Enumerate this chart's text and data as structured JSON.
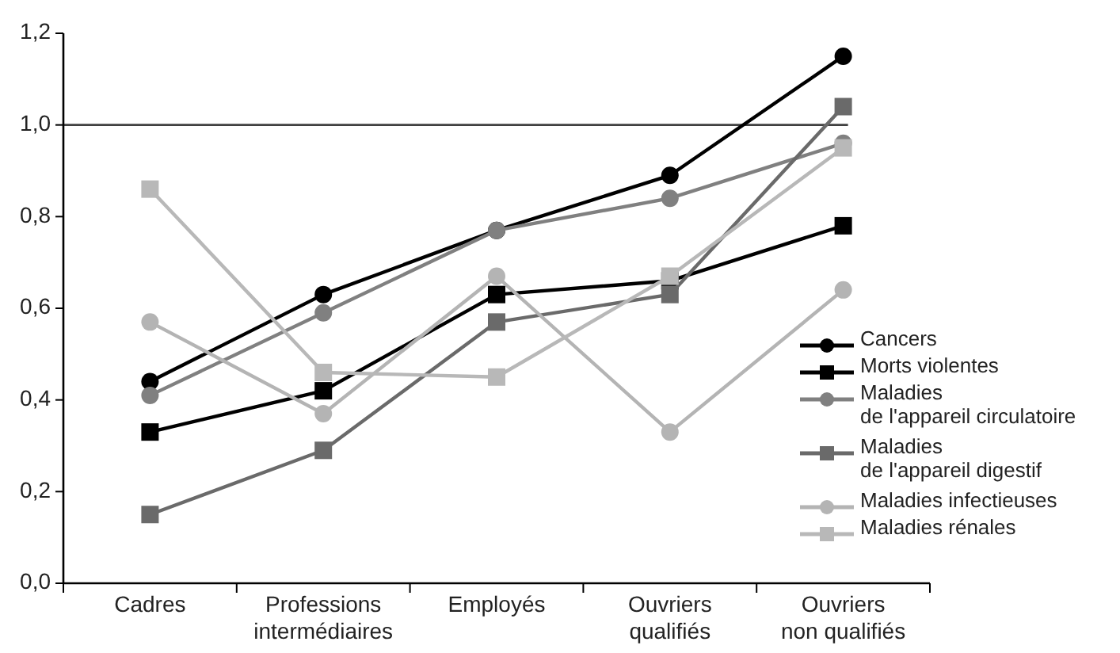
{
  "chart_data": {
    "type": "line",
    "categories": [
      "Cadres",
      "Professions\nintermédiaires",
      "Employés",
      "Ouvriers\nqualifiés",
      "Ouvriers\nnon qualifiés"
    ],
    "series": [
      {
        "name": "Cancers",
        "color": "#000000",
        "marker": "circle",
        "values": [
          0.44,
          0.63,
          0.77,
          0.89,
          1.15
        ]
      },
      {
        "name": "Morts violentes",
        "color": "#000000",
        "marker": "square",
        "values": [
          0.33,
          0.42,
          0.63,
          0.66,
          0.78
        ]
      },
      {
        "name": "Maladies\nde l'appareil circulatoire",
        "color": "#808080",
        "marker": "circle",
        "values": [
          0.41,
          0.59,
          0.77,
          0.84,
          0.96
        ]
      },
      {
        "name": "Maladies\nde l'appareil digestif",
        "color": "#6a6a6a",
        "marker": "square",
        "values": [
          0.15,
          0.29,
          0.57,
          0.63,
          1.04
        ]
      },
      {
        "name": "Maladies infectieuses",
        "color": "#b4b4b4",
        "marker": "circle",
        "values": [
          0.57,
          0.37,
          0.67,
          0.33,
          0.64
        ]
      },
      {
        "name": "Maladies rénales",
        "color": "#b8b8b8",
        "marker": "square",
        "values": [
          0.86,
          0.46,
          0.45,
          0.67,
          0.95
        ]
      }
    ],
    "ylim": [
      0,
      1.2
    ],
    "yticks": [
      {
        "value": 0,
        "label": "0,0"
      },
      {
        "value": 0.2,
        "label": "0,2"
      },
      {
        "value": 0.4,
        "label": "0,4"
      },
      {
        "value": 0.6,
        "label": "0,6"
      },
      {
        "value": 0.8,
        "label": "0,8"
      },
      {
        "value": 1,
        "label": "1,0"
      },
      {
        "value": 1.2,
        "label": "1,2"
      }
    ],
    "ref_lines": [
      {
        "axis": "y",
        "value": 1,
        "color": "#404040"
      }
    ],
    "legend": "right",
    "line_style": "solid"
  }
}
